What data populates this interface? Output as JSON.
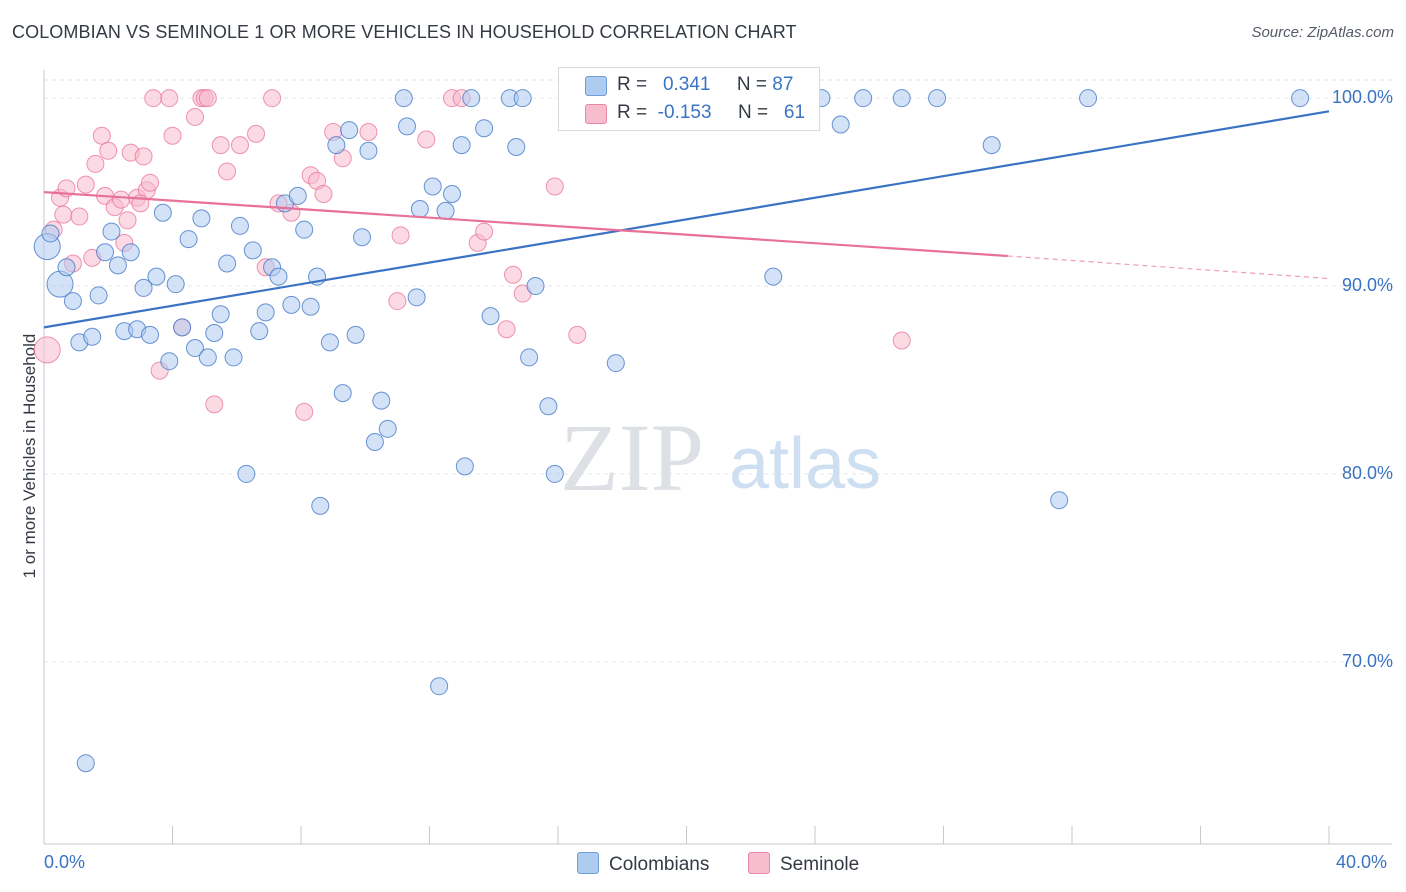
{
  "title": "COLOMBIAN VS SEMINOLE 1 OR MORE VEHICLES IN HOUSEHOLD CORRELATION CHART",
  "source": "Source: ZipAtlas.com",
  "watermark": {
    "zip": "ZIP",
    "atlas": "atlas"
  },
  "legend": {
    "rows": [
      {
        "r_label": "R =",
        "r_value": "0.341",
        "n_label": "N =",
        "n_value": "87",
        "color": "#aecbf0"
      },
      {
        "r_label": "R =",
        "r_value": "-0.153",
        "n_label": "N =",
        "n_value": "61",
        "color": "#f7bccd"
      }
    ]
  },
  "series_legend": [
    {
      "name": "Colombians",
      "color": "#aecbf0"
    },
    {
      "name": "Seminole",
      "color": "#f7bccd"
    }
  ],
  "chart_data": {
    "type": "scatter",
    "title": "COLOMBIAN VS SEMINOLE 1 OR MORE VEHICLES IN HOUSEHOLD CORRELATION CHART",
    "xlabel": "",
    "ylabel": "1 or more Vehicles in Household",
    "xlim": [
      0,
      40
    ],
    "ylim": [
      60.3,
      101.5
    ],
    "x_tick_labels": [
      "0.0%",
      "40.0%"
    ],
    "y_ticks": [
      70,
      80,
      90,
      100
    ],
    "y_tick_labels": [
      "70.0%",
      "80.0%",
      "90.0%",
      "100.0%"
    ],
    "grid": true,
    "legend_position": "top-center",
    "series": [
      {
        "name": "Colombians",
        "color": "#3a73c4",
        "fill": "#aecbf0",
        "r": 0.341,
        "n": 87,
        "trend": {
          "x": [
            0,
            40
          ],
          "y": [
            87.8,
            99.3
          ]
        },
        "points": [
          {
            "x": 0.1,
            "y": 92.1,
            "big": true
          },
          {
            "x": 0.5,
            "y": 90.1,
            "big": true
          },
          {
            "x": 0.7,
            "y": 91.0
          },
          {
            "x": 0.9,
            "y": 89.2
          },
          {
            "x": 1.1,
            "y": 87.0
          },
          {
            "x": 1.5,
            "y": 87.3
          },
          {
            "x": 1.7,
            "y": 89.5
          },
          {
            "x": 1.9,
            "y": 91.8
          },
          {
            "x": 2.1,
            "y": 92.9
          },
          {
            "x": 2.3,
            "y": 91.1
          },
          {
            "x": 2.5,
            "y": 87.6
          },
          {
            "x": 2.7,
            "y": 91.8
          },
          {
            "x": 2.9,
            "y": 87.7
          },
          {
            "x": 3.1,
            "y": 89.9
          },
          {
            "x": 3.3,
            "y": 87.4
          },
          {
            "x": 3.5,
            "y": 90.5
          },
          {
            "x": 3.7,
            "y": 93.9
          },
          {
            "x": 3.9,
            "y": 86.0
          },
          {
            "x": 4.1,
            "y": 90.1
          },
          {
            "x": 4.3,
            "y": 87.8
          },
          {
            "x": 4.5,
            "y": 92.5
          },
          {
            "x": 4.7,
            "y": 86.7
          },
          {
            "x": 4.9,
            "y": 93.6
          },
          {
            "x": 5.1,
            "y": 86.2
          },
          {
            "x": 5.3,
            "y": 87.5
          },
          {
            "x": 5.5,
            "y": 88.5
          },
          {
            "x": 5.7,
            "y": 91.2
          },
          {
            "x": 5.9,
            "y": 86.2
          },
          {
            "x": 6.1,
            "y": 93.2
          },
          {
            "x": 6.3,
            "y": 80.0
          },
          {
            "x": 6.5,
            "y": 91.9
          },
          {
            "x": 6.7,
            "y": 87.6
          },
          {
            "x": 6.9,
            "y": 88.6
          },
          {
            "x": 7.1,
            "y": 91.0
          },
          {
            "x": 7.3,
            "y": 90.5
          },
          {
            "x": 7.5,
            "y": 94.4
          },
          {
            "x": 7.7,
            "y": 89.0
          },
          {
            "x": 7.9,
            "y": 94.8
          },
          {
            "x": 8.1,
            "y": 93.0
          },
          {
            "x": 8.3,
            "y": 88.9
          },
          {
            "x": 8.5,
            "y": 90.5
          },
          {
            "x": 8.6,
            "y": 78.3
          },
          {
            "x": 8.9,
            "y": 87.0
          },
          {
            "x": 9.1,
            "y": 97.5
          },
          {
            "x": 9.3,
            "y": 84.3
          },
          {
            "x": 9.5,
            "y": 98.3
          },
          {
            "x": 9.7,
            "y": 87.4
          },
          {
            "x": 9.9,
            "y": 92.6
          },
          {
            "x": 10.1,
            "y": 97.2
          },
          {
            "x": 10.3,
            "y": 81.7
          },
          {
            "x": 10.5,
            "y": 83.9
          },
          {
            "x": 10.7,
            "y": 82.4
          },
          {
            "x": 11.2,
            "y": 100.0
          },
          {
            "x": 11.3,
            "y": 98.5
          },
          {
            "x": 11.6,
            "y": 89.4
          },
          {
            "x": 11.7,
            "y": 94.1
          },
          {
            "x": 12.1,
            "y": 95.3
          },
          {
            "x": 12.3,
            "y": 68.7
          },
          {
            "x": 12.5,
            "y": 94.0
          },
          {
            "x": 12.7,
            "y": 94.9
          },
          {
            "x": 13.0,
            "y": 97.5
          },
          {
            "x": 13.1,
            "y": 80.4
          },
          {
            "x": 13.3,
            "y": 100.0
          },
          {
            "x": 13.7,
            "y": 98.4
          },
          {
            "x": 13.9,
            "y": 88.4
          },
          {
            "x": 14.5,
            "y": 100.0
          },
          {
            "x": 14.7,
            "y": 97.4
          },
          {
            "x": 14.9,
            "y": 100.0
          },
          {
            "x": 15.3,
            "y": 90.0
          },
          {
            "x": 15.1,
            "y": 86.2
          },
          {
            "x": 15.7,
            "y": 83.6
          },
          {
            "x": 15.9,
            "y": 80.0
          },
          {
            "x": 17.8,
            "y": 85.9
          },
          {
            "x": 22.3,
            "y": 100.0
          },
          {
            "x": 22.7,
            "y": 90.5
          },
          {
            "x": 24.2,
            "y": 100.0
          },
          {
            "x": 24.8,
            "y": 98.6
          },
          {
            "x": 25.5,
            "y": 100.0
          },
          {
            "x": 26.7,
            "y": 100.0
          },
          {
            "x": 27.8,
            "y": 100.0
          },
          {
            "x": 29.5,
            "y": 97.5
          },
          {
            "x": 31.6,
            "y": 78.6
          },
          {
            "x": 32.5,
            "y": 100.0
          },
          {
            "x": 39.1,
            "y": 100.0
          },
          {
            "x": 0.2,
            "y": 92.8
          },
          {
            "x": 1.3,
            "y": 64.6
          },
          {
            "x": 21.9,
            "y": 100.0
          }
        ]
      },
      {
        "name": "Seminole",
        "color": "#e8719a",
        "fill": "#f7bccd",
        "r": -0.153,
        "n": 61,
        "trend": {
          "x": [
            0,
            30
          ],
          "y": [
            95.0,
            91.6
          ]
        },
        "trend_dashed": {
          "x": [
            30,
            40
          ],
          "y": [
            91.6,
            90.4
          ]
        },
        "points": [
          {
            "x": 0.1,
            "y": 86.6,
            "big": true
          },
          {
            "x": 0.3,
            "y": 93.0
          },
          {
            "x": 0.5,
            "y": 94.7
          },
          {
            "x": 0.6,
            "y": 93.8
          },
          {
            "x": 0.7,
            "y": 95.2
          },
          {
            "x": 0.9,
            "y": 91.2
          },
          {
            "x": 1.1,
            "y": 93.7
          },
          {
            "x": 1.3,
            "y": 95.4
          },
          {
            "x": 1.5,
            "y": 91.5
          },
          {
            "x": 1.6,
            "y": 96.5
          },
          {
            "x": 1.8,
            "y": 98.0
          },
          {
            "x": 1.9,
            "y": 94.8
          },
          {
            "x": 2.0,
            "y": 97.2
          },
          {
            "x": 2.2,
            "y": 94.2
          },
          {
            "x": 2.4,
            "y": 94.6
          },
          {
            "x": 2.5,
            "y": 92.3
          },
          {
            "x": 2.6,
            "y": 93.5
          },
          {
            "x": 2.7,
            "y": 97.1
          },
          {
            "x": 2.9,
            "y": 94.7
          },
          {
            "x": 3.1,
            "y": 96.9
          },
          {
            "x": 3.2,
            "y": 95.1
          },
          {
            "x": 3.3,
            "y": 95.5
          },
          {
            "x": 3.4,
            "y": 100.0
          },
          {
            "x": 3.6,
            "y": 85.5
          },
          {
            "x": 3.9,
            "y": 100.0
          },
          {
            "x": 4.0,
            "y": 98.0
          },
          {
            "x": 4.3,
            "y": 87.8
          },
          {
            "x": 4.7,
            "y": 99.0
          },
          {
            "x": 4.9,
            "y": 100.0
          },
          {
            "x": 5.0,
            "y": 100.0
          },
          {
            "x": 5.1,
            "y": 100.0
          },
          {
            "x": 5.3,
            "y": 83.7
          },
          {
            "x": 5.5,
            "y": 97.5
          },
          {
            "x": 5.7,
            "y": 96.1
          },
          {
            "x": 6.1,
            "y": 97.5
          },
          {
            "x": 6.6,
            "y": 98.1
          },
          {
            "x": 6.9,
            "y": 91.0
          },
          {
            "x": 7.1,
            "y": 100.0
          },
          {
            "x": 7.3,
            "y": 94.4
          },
          {
            "x": 7.7,
            "y": 93.9
          },
          {
            "x": 8.1,
            "y": 83.3
          },
          {
            "x": 8.3,
            "y": 95.9
          },
          {
            "x": 8.5,
            "y": 95.6
          },
          {
            "x": 8.7,
            "y": 94.9
          },
          {
            "x": 9.0,
            "y": 98.2
          },
          {
            "x": 9.3,
            "y": 96.8
          },
          {
            "x": 10.1,
            "y": 98.2
          },
          {
            "x": 11.1,
            "y": 92.7
          },
          {
            "x": 11.0,
            "y": 89.2
          },
          {
            "x": 11.9,
            "y": 97.8
          },
          {
            "x": 12.7,
            "y": 100.0
          },
          {
            "x": 13.0,
            "y": 100.0
          },
          {
            "x": 13.5,
            "y": 92.3
          },
          {
            "x": 13.7,
            "y": 92.9
          },
          {
            "x": 14.4,
            "y": 87.7
          },
          {
            "x": 14.6,
            "y": 90.6
          },
          {
            "x": 14.9,
            "y": 89.6
          },
          {
            "x": 15.9,
            "y": 95.3
          },
          {
            "x": 16.6,
            "y": 87.4
          },
          {
            "x": 26.7,
            "y": 87.1
          },
          {
            "x": 3.0,
            "y": 94.4
          }
        ]
      }
    ]
  }
}
